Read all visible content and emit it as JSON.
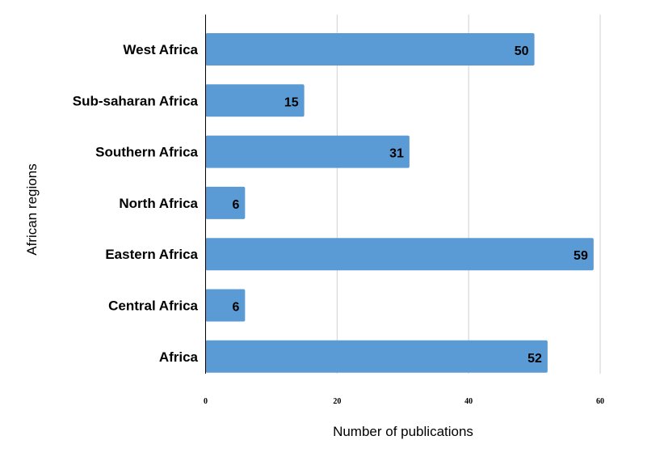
{
  "chart_data": {
    "type": "bar",
    "orientation": "horizontal",
    "categories": [
      "West Africa",
      "Sub-saharan Africa",
      "Southern Africa",
      "North Africa",
      "Eastern Africa",
      "Central Africa",
      "Africa"
    ],
    "values": [
      50,
      15,
      31,
      6,
      59,
      6,
      52
    ],
    "xlabel": "Number of publications",
    "ylabel": "African regions",
    "xlim": [
      0,
      60
    ],
    "xticks": [
      0,
      20,
      40,
      60
    ],
    "grid": "vertical",
    "legend": "none",
    "data_labels": true,
    "colors": {
      "bar": "#5b9bd5",
      "grid": "#d0d0d0",
      "axis": "#000000"
    }
  }
}
